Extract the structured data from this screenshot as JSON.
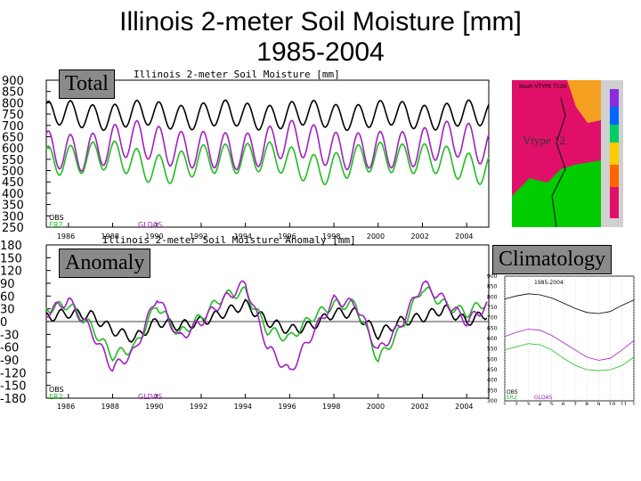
{
  "slide": {
    "title": "Illinois 2-meter Soil Moisture [mm]\n1985-2004",
    "title_line1": "Illinois 2-meter Soil Moisture [mm]",
    "title_line2": "1985-2004",
    "label_total": "Total",
    "label_anomaly": "Anomaly",
    "label_climatology": "Climatology",
    "map_label": "Vtype 12",
    "map_header": "Noah VTYPE T126"
  },
  "colors": {
    "obs": "#000000",
    "er2": "#22bb22",
    "gldas": "#a020c0",
    "map_bg": "#e0106a",
    "map_green": "#00cc00"
  },
  "chart_data": [
    {
      "type": "line",
      "title": "Illinois 2-meter Soil Moisture [mm]",
      "ylim": [
        250,
        900
      ],
      "yticks": [
        900,
        850,
        800,
        750,
        700,
        650,
        600,
        550,
        500,
        450,
        400,
        350,
        300,
        250
      ],
      "xlim": [
        1985,
        2005
      ],
      "xticks": [
        "1986",
        "1988",
        "1990",
        "1992",
        "1994",
        "1996",
        "1998",
        "2000",
        "2002",
        "2004"
      ],
      "legend": [
        "OBS",
        "ER2",
        "GLDAS"
      ],
      "series": [
        {
          "name": "OBS",
          "mean": 745,
          "amp": 55
        },
        {
          "name": "GLDAS",
          "mean": 605,
          "amp": 80
        },
        {
          "name": "ER2",
          "mean": 540,
          "amp": 65
        }
      ]
    },
    {
      "type": "line",
      "title": "Illinois 2-meter Soil Moisture Anomaly [mm]",
      "ylim": [
        -180,
        180
      ],
      "yticks": [
        "180",
        "150",
        "120",
        "90",
        "60",
        "30",
        "0",
        "-30",
        "-60",
        "-90",
        "-120",
        "-150",
        "-180"
      ],
      "xlim": [
        1985,
        2005
      ],
      "xticks": [
        "1986",
        "1988",
        "1990",
        "1992",
        "1994",
        "1996",
        "1998",
        "2000",
        "2002",
        "2004"
      ],
      "legend": [
        "OBS",
        "ER2",
        "GLDAS"
      ],
      "series": [
        {
          "name": "OBS",
          "x": [
            1985,
            1986,
            1987,
            1988,
            1989,
            1990,
            1991,
            1992,
            1993,
            1994,
            1995,
            1996,
            1997,
            1998,
            1999,
            2000,
            2001,
            2002,
            2003,
            2004,
            2005
          ],
          "y": [
            10,
            20,
            15,
            -20,
            -40,
            0,
            -10,
            0,
            20,
            40,
            0,
            -20,
            -10,
            20,
            20,
            -30,
            0,
            10,
            30,
            0,
            20
          ]
        },
        {
          "name": "ER2",
          "x": [
            1985,
            1986,
            1987,
            1988,
            1989,
            1990,
            1991,
            1992,
            1993,
            1994,
            1995,
            1996,
            1997,
            1998,
            1999,
            2000,
            2001,
            2002,
            2003,
            2004,
            2005
          ],
          "y": [
            30,
            40,
            -10,
            -80,
            -60,
            40,
            -30,
            10,
            60,
            70,
            -20,
            -40,
            10,
            40,
            40,
            -90,
            -20,
            80,
            40,
            20,
            50
          ]
        },
        {
          "name": "GLDAS",
          "x": [
            1985,
            1986,
            1987,
            1988,
            1989,
            1990,
            1991,
            1992,
            1993,
            1994,
            1995,
            1996,
            1997,
            1998,
            1999,
            2000,
            2001,
            2002,
            2003,
            2004,
            2005
          ],
          "y": [
            20,
            50,
            -20,
            -110,
            -70,
            60,
            -40,
            0,
            50,
            90,
            -60,
            -120,
            -30,
            50,
            40,
            -70,
            -10,
            90,
            50,
            0,
            40
          ]
        }
      ]
    },
    {
      "type": "line",
      "title": "1985-2004",
      "ylim": [
        300,
        900
      ],
      "yticks": [
        "900",
        "850",
        "800",
        "750",
        "700",
        "650",
        "600",
        "550",
        "500",
        "450",
        "400",
        "350",
        "300"
      ],
      "xticks": [
        "1",
        "2",
        "3",
        "4",
        "5",
        "6",
        "7",
        "8",
        "9",
        "10",
        "11",
        "12"
      ],
      "legend": [
        "OBS",
        "ER2",
        "GLDAS"
      ],
      "series": [
        {
          "name": "OBS",
          "x": [
            1,
            2,
            3,
            4,
            5,
            6,
            7,
            8,
            9,
            10,
            11,
            12
          ],
          "y": [
            790,
            805,
            815,
            810,
            795,
            770,
            745,
            725,
            720,
            730,
            760,
            785
          ]
        },
        {
          "name": "GLDAS",
          "x": [
            1,
            2,
            3,
            4,
            5,
            6,
            7,
            8,
            9,
            10,
            11,
            12
          ],
          "y": [
            610,
            630,
            645,
            640,
            615,
            580,
            545,
            510,
            495,
            505,
            545,
            590
          ]
        },
        {
          "name": "ER2",
          "x": [
            1,
            2,
            3,
            4,
            5,
            6,
            7,
            8,
            9,
            10,
            11,
            12
          ],
          "y": [
            545,
            560,
            575,
            570,
            545,
            505,
            470,
            450,
            445,
            450,
            470,
            510
          ]
        }
      ]
    }
  ]
}
